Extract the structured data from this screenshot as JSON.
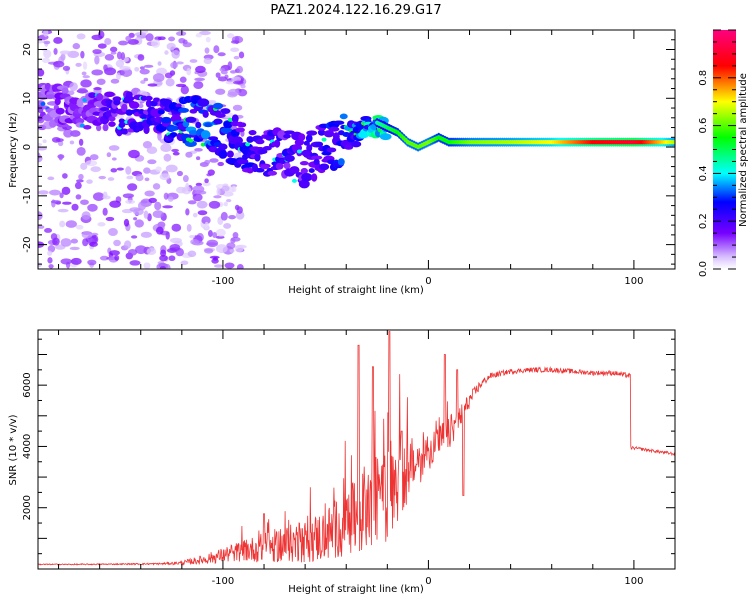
{
  "title": "PAZ1.2024.122.16.29.G17",
  "chart_data": [
    {
      "type": "heatmap",
      "xlabel": "Height of straight line (km)",
      "ylabel": "Frequency (Hz)",
      "xlim": [
        -190,
        120
      ],
      "ylim": [
        -25,
        24
      ],
      "x_ticks": [
        -100,
        0,
        100
      ],
      "y_ticks": [
        -20,
        -10,
        0,
        10,
        20
      ],
      "colorbar": {
        "label": "Normalized spectral amplitude",
        "range": [
          0,
          1
        ],
        "ticks": [
          "0.0",
          "0.2",
          "0.4",
          "0.6",
          "0.8"
        ],
        "colormap": "hsv-rainbow (white/violet low → blue → cyan → green → yellow → red → magenta high)"
      },
      "ridge": {
        "x": [
          -190,
          -170,
          -150,
          -130,
          -120,
          -110,
          -100,
          -90,
          -80,
          -70,
          -60,
          -50,
          -40,
          -30,
          -25,
          -20,
          -15,
          -10,
          -5,
          0,
          5,
          10,
          20,
          40,
          60,
          80,
          100,
          120
        ],
        "freq": [
          9,
          8,
          7,
          6,
          5,
          5,
          3,
          0,
          -1,
          -1,
          -3,
          0,
          2,
          4,
          5,
          4,
          3,
          1,
          0,
          1,
          2,
          1,
          1,
          1,
          1,
          1,
          1,
          1
        ],
        "amplitude": [
          0.12,
          0.15,
          0.2,
          0.25,
          0.3,
          0.32,
          0.3,
          0.25,
          0.22,
          0.22,
          0.2,
          0.25,
          0.3,
          0.38,
          0.45,
          0.5,
          0.55,
          0.6,
          0.6,
          0.62,
          0.55,
          0.55,
          0.62,
          0.65,
          0.7,
          0.85,
          0.9,
          0.65
        ]
      }
    },
    {
      "type": "line",
      "xlabel": "Height of straight line (km)",
      "ylabel": "SNR (10 * v/v)",
      "xlim": [
        -190,
        120
      ],
      "ylim": [
        0,
        7800
      ],
      "x_ticks": [
        -100,
        0,
        100
      ],
      "y_ticks": [
        2000,
        4000,
        6000
      ],
      "series": [
        {
          "color": "#ee3333",
          "x": [
            -190,
            -170,
            -150,
            -130,
            -120,
            -110,
            -100,
            -90,
            -80,
            -70,
            -60,
            -50,
            -40,
            -30,
            -25,
            -20,
            -15,
            -10,
            -5,
            0,
            5,
            10,
            15,
            20,
            25,
            30,
            40,
            50,
            60,
            70,
            80,
            90,
            98,
            99,
            100,
            110,
            120
          ],
          "y": [
            150,
            150,
            160,
            170,
            200,
            300,
            450,
            600,
            700,
            800,
            900,
            1100,
            1500,
            1900,
            2200,
            2600,
            2900,
            3200,
            3500,
            3800,
            4200,
            4400,
            4900,
            5500,
            6000,
            6300,
            6450,
            6500,
            6500,
            6450,
            6400,
            6400,
            6300,
            3950,
            3950,
            3850,
            3750
          ],
          "noise": [
            20,
            20,
            20,
            30,
            60,
            150,
            250,
            350,
            500,
            600,
            700,
            900,
            1100,
            1400,
            1500,
            1700,
            1400,
            1100,
            800,
            600,
            500,
            600,
            400,
            250,
            150,
            100,
            80,
            80,
            80,
            80,
            80,
            80,
            80,
            50,
            50,
            50,
            50
          ],
          "spikes": [
            [
              -80,
              1800
            ],
            [
              -34,
              7300
            ],
            [
              -27,
              6600
            ],
            [
              -19,
              7750
            ],
            [
              -13,
              4500
            ],
            [
              8,
              7000
            ],
            [
              14,
              6500
            ],
            [
              17,
              2400
            ]
          ]
        }
      ]
    }
  ]
}
